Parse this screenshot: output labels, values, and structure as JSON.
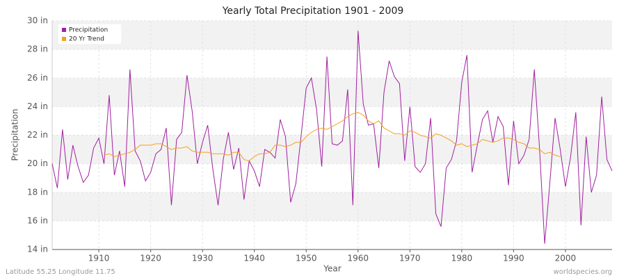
{
  "chart_data": {
    "type": "line",
    "title": "Yearly Total Precipitation 1901 - 2009",
    "xlabel": "Year",
    "ylabel": "Precipitation",
    "footer_left": "Latitude 55.25 Longitude 11.75",
    "footer_right": "worldspecies.org",
    "legend": "upper left",
    "grid": true,
    "xlim": [
      1901,
      2009
    ],
    "xticks": [
      1910,
      1920,
      1930,
      1940,
      1950,
      1960,
      1970,
      1980,
      1990,
      2000
    ],
    "ylim": [
      14,
      30
    ],
    "yticks": [
      {
        "value": 14,
        "label": "14 in"
      },
      {
        "value": 16,
        "label": "16 in"
      },
      {
        "value": 18,
        "label": "18 in"
      },
      {
        "value": 20,
        "label": "20 in"
      },
      {
        "value": 22,
        "label": "22 in"
      },
      {
        "value": 24,
        "label": "24 in"
      },
      {
        "value": 26,
        "label": "26 in"
      },
      {
        "value": 28,
        "label": "28 in"
      },
      {
        "value": 30,
        "label": "30 in"
      }
    ],
    "x": [
      1901,
      1902,
      1903,
      1904,
      1905,
      1906,
      1907,
      1908,
      1909,
      1910,
      1911,
      1912,
      1913,
      1914,
      1915,
      1916,
      1917,
      1918,
      1919,
      1920,
      1921,
      1922,
      1923,
      1924,
      1925,
      1926,
      1927,
      1928,
      1929,
      1930,
      1931,
      1932,
      1933,
      1934,
      1935,
      1936,
      1937,
      1938,
      1939,
      1940,
      1941,
      1942,
      1943,
      1944,
      1945,
      1946,
      1947,
      1948,
      1949,
      1950,
      1951,
      1952,
      1953,
      1954,
      1955,
      1956,
      1957,
      1958,
      1959,
      1960,
      1961,
      1962,
      1963,
      1964,
      1965,
      1966,
      1967,
      1968,
      1969,
      1970,
      1971,
      1972,
      1973,
      1974,
      1975,
      1976,
      1977,
      1978,
      1979,
      1980,
      1981,
      1982,
      1983,
      1984,
      1985,
      1986,
      1987,
      1988,
      1989,
      1990,
      1991,
      1992,
      1993,
      1994,
      1995,
      1996,
      1997,
      1998,
      1999,
      2000,
      2001,
      2002,
      2003,
      2004,
      2005,
      2006,
      2007,
      2008,
      2009
    ],
    "series": [
      {
        "name": "Precipitation",
        "color": "#a020a0",
        "values": [
          20.0,
          18.3,
          22.4,
          18.9,
          21.3,
          19.8,
          18.7,
          19.2,
          21.1,
          21.8,
          20.0,
          24.8,
          19.2,
          20.9,
          18.4,
          26.6,
          20.9,
          20.2,
          18.8,
          19.4,
          20.7,
          21.0,
          22.5,
          17.1,
          21.7,
          22.2,
          26.2,
          23.7,
          20.0,
          21.5,
          22.7,
          19.6,
          17.1,
          20.3,
          22.2,
          19.6,
          21.1,
          17.5,
          20.2,
          19.5,
          18.4,
          21.0,
          20.8,
          20.4,
          23.1,
          21.9,
          17.3,
          18.6,
          21.9,
          25.3,
          26.0,
          23.8,
          19.8,
          27.5,
          21.4,
          21.3,
          21.6,
          25.2,
          17.1,
          29.3,
          24.2,
          22.7,
          22.8,
          19.7,
          25.0,
          27.2,
          26.1,
          25.6,
          20.2,
          24.0,
          19.8,
          19.4,
          20.0,
          23.2,
          16.5,
          15.6,
          19.7,
          20.3,
          21.6,
          25.7,
          27.6,
          19.4,
          21.3,
          23.1,
          23.7,
          21.5,
          23.3,
          22.6,
          18.5,
          23.0,
          20.0,
          20.6,
          21.7,
          26.6,
          21.1,
          14.4,
          18.7,
          23.2,
          21.0,
          18.4,
          20.5,
          23.6,
          15.7,
          21.9,
          18.0,
          19.2,
          24.7,
          20.3,
          19.5
        ]
      },
      {
        "name": "20 Yr Trend",
        "color": "#f5a020",
        "values": [
          null,
          null,
          null,
          null,
          null,
          null,
          null,
          null,
          null,
          null,
          20.6,
          20.7,
          20.5,
          20.6,
          20.7,
          20.8,
          21.0,
          21.3,
          21.3,
          21.3,
          21.4,
          21.4,
          21.2,
          21.0,
          21.1,
          21.1,
          21.2,
          20.9,
          20.8,
          20.8,
          20.8,
          20.7,
          20.7,
          20.7,
          20.6,
          20.8,
          20.8,
          20.3,
          20.2,
          20.5,
          20.7,
          20.7,
          20.8,
          21.3,
          21.3,
          21.2,
          21.3,
          21.5,
          21.5,
          21.9,
          22.2,
          22.4,
          22.5,
          22.4,
          22.6,
          22.8,
          23.0,
          23.3,
          23.5,
          23.6,
          23.4,
          23.0,
          22.8,
          23.0,
          22.5,
          22.3,
          22.1,
          22.1,
          22.0,
          22.3,
          22.2,
          22.0,
          21.9,
          21.8,
          22.1,
          22.0,
          21.8,
          21.6,
          21.3,
          21.4,
          21.2,
          21.3,
          21.4,
          21.7,
          21.6,
          21.5,
          21.6,
          21.8,
          21.8,
          21.7,
          21.5,
          21.4,
          21.1,
          21.1,
          21.0,
          20.7,
          20.8,
          20.6,
          20.5,
          null,
          null,
          null,
          null,
          null,
          null,
          null,
          null,
          null,
          null
        ]
      }
    ]
  }
}
